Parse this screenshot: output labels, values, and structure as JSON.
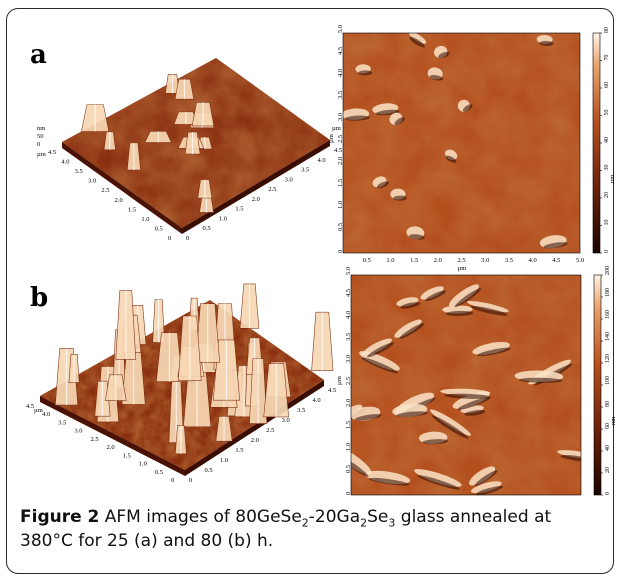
{
  "panels": [
    {
      "id": "a",
      "label": "a",
      "z_max": 80,
      "surface_3d": {
        "z_unit": "nm",
        "z_ticks": [
          "50",
          "0"
        ],
        "axis_unit": "µm",
        "left_axis_ticks": [
          "4.5",
          "4.0",
          "3.5",
          "3.0",
          "2.5",
          "2.0",
          "1.5",
          "1.0",
          "0.5",
          "0"
        ],
        "right_axis_ticks": [
          "0",
          "0.5",
          "1.0",
          "1.5",
          "2.0",
          "2.5",
          "3.0",
          "3.5",
          "4.0",
          "4.5"
        ]
      },
      "map_2d": {
        "x_label": "µm",
        "y_label": "µm",
        "x_ticks": [
          "0.5",
          "1.0",
          "1.5",
          "2.0",
          "2.5",
          "3.0",
          "3.5",
          "4.0",
          "4.5",
          "5.0"
        ],
        "y_ticks": [
          "0",
          "0.5",
          "1.0",
          "1.5",
          "2.0",
          "2.5",
          "3.0",
          "3.5",
          "4.0",
          "4.5",
          "5.0"
        ],
        "colorbar_label": "nm",
        "colorbar_ticks": [
          "0",
          "10",
          "20",
          "30",
          "40",
          "50",
          "60",
          "70",
          "80"
        ]
      }
    },
    {
      "id": "b",
      "label": "b",
      "z_max": 200,
      "surface_3d": {
        "axis_unit": "µm",
        "left_axis_ticks": [
          "4.5",
          "4.0",
          "3.5",
          "3.0",
          "2.5",
          "2.0",
          "1.5",
          "1.0",
          "0.5",
          "0"
        ],
        "right_axis_ticks": [
          "0",
          "0.5",
          "1.0",
          "1.5",
          "2.0",
          "2.5",
          "3.0",
          "3.5",
          "4.0",
          "4.5"
        ]
      },
      "map_2d": {
        "x_label": "µm",
        "y_label": "µm",
        "x_ticks": [
          "0",
          "0.5",
          "1.0",
          "1.5",
          "2.0",
          "2.5",
          "3.0",
          "3.5",
          "4.0",
          "4.5",
          "5.0"
        ],
        "y_ticks": [
          "0",
          "0.5",
          "1.0",
          "1.5",
          "2.0",
          "2.5",
          "3.0",
          "3.5",
          "4.0",
          "4.5",
          "5.0"
        ],
        "colorbar_label": "nm",
        "colorbar_ticks": [
          "0",
          "20",
          "40",
          "60",
          "80",
          "100",
          "120",
          "140",
          "160",
          "180",
          "200"
        ]
      }
    }
  ],
  "caption": {
    "figure_label": "Figure 2",
    "text_1": " AFM images of 80GeSe",
    "sub_1": "2",
    "text_2": "-20Ga",
    "sub_2": "2",
    "text_3": "Se",
    "sub_3": "3",
    "text_4": " glass annealed at 380°C for 25 (a) and 80 (b) h."
  },
  "colors": {
    "afm_dark": "#2b0b02",
    "afm_mid": "#a8431a",
    "afm_light": "#fbe6cc",
    "frame": "#2a2a2a"
  }
}
